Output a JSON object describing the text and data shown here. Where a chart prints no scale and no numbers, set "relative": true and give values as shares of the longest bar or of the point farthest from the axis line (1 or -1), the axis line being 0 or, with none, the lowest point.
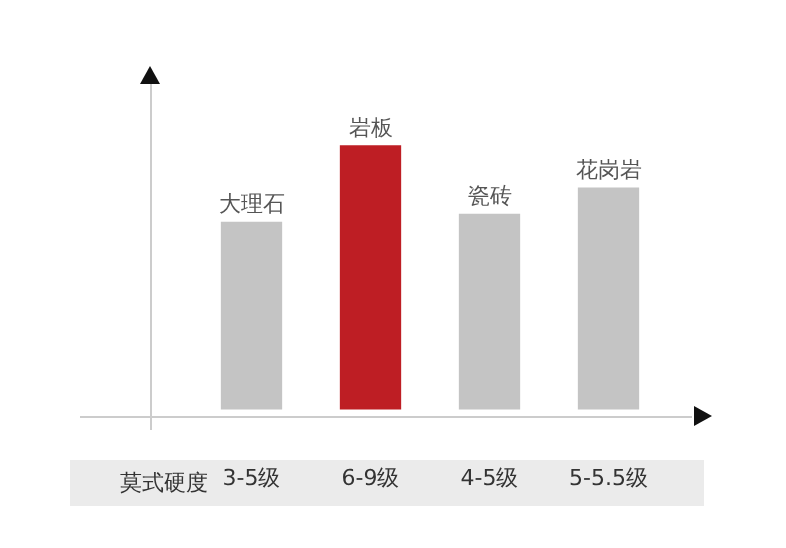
{
  "chart_data": {
    "type": "bar",
    "xlabel": "莫式硬度",
    "categories": [
      "3-5级",
      "6-9级",
      "4-5级",
      "5-5.5级"
    ],
    "values": [
      0.71,
      1,
      0.74,
      0.84
    ],
    "colors": [
      "#c4c4c4",
      "#be1e24",
      "#c4c4c4",
      "#c4c4c4"
    ],
    "relative": true,
    "annotations": [
      {
        "text": "大理石",
        "x": "3-5级",
        "y": 0.71
      },
      {
        "text": "岩板",
        "x": "6-9级",
        "y": 1
      },
      {
        "text": "瓷砖",
        "x": "4-5级",
        "y": 0.74
      },
      {
        "text": "花岗岩",
        "x": "5-5.5级",
        "y": 0.84
      }
    ]
  }
}
